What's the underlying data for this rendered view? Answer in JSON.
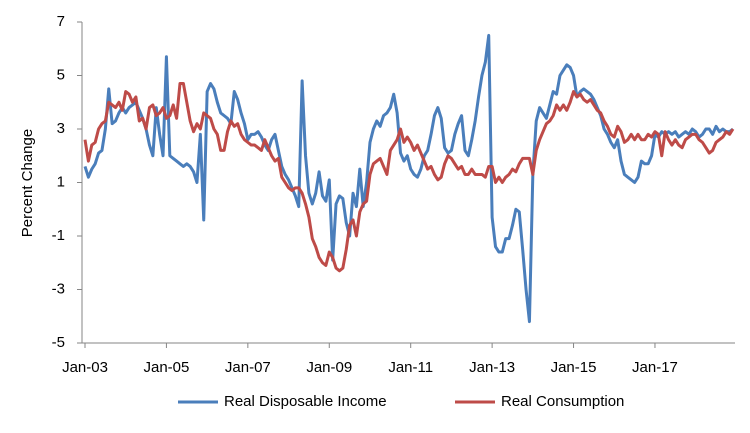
{
  "chart_data": {
    "type": "line",
    "y_label": "Percent Change",
    "categories": [
      "Jan-03",
      null,
      null,
      null,
      null,
      null,
      null,
      null,
      null,
      null,
      null,
      null,
      null,
      null,
      null,
      null,
      null,
      null,
      null,
      null,
      null,
      null,
      null,
      null,
      "Jan-05",
      null,
      null,
      null,
      null,
      null,
      null,
      null,
      null,
      null,
      null,
      null,
      null,
      null,
      null,
      null,
      null,
      null,
      null,
      null,
      null,
      null,
      null,
      null,
      "Jan-07",
      null,
      null,
      null,
      null,
      null,
      null,
      null,
      null,
      null,
      null,
      null,
      null,
      null,
      null,
      null,
      null,
      null,
      null,
      null,
      null,
      null,
      null,
      null,
      "Jan-09",
      null,
      null,
      null,
      null,
      null,
      null,
      null,
      null,
      null,
      null,
      null,
      null,
      null,
      null,
      null,
      null,
      null,
      null,
      null,
      null,
      null,
      null,
      null,
      "Jan-11",
      null,
      null,
      null,
      null,
      null,
      null,
      null,
      null,
      null,
      null,
      null,
      null,
      null,
      null,
      null,
      null,
      null,
      null,
      null,
      null,
      null,
      null,
      null,
      "Jan-13",
      null,
      null,
      null,
      null,
      null,
      null,
      null,
      null,
      null,
      null,
      null,
      null,
      null,
      null,
      null,
      null,
      null,
      null,
      null,
      null,
      null,
      null,
      null,
      "Jan-15",
      null,
      null,
      null,
      null,
      null,
      null,
      null,
      null,
      null,
      null,
      null,
      null,
      null,
      null,
      null,
      null,
      null,
      null,
      null,
      null,
      null,
      null,
      null,
      "Jan-17",
      null,
      null,
      null,
      null,
      null,
      null,
      null,
      null,
      null,
      null,
      null,
      null,
      null,
      null,
      null,
      null,
      null,
      null,
      null,
      null,
      null,
      null,
      null
    ],
    "series": [
      {
        "name": "Real Disposable Income",
        "color": "#4a7ebb",
        "values": [
          1.6,
          1.2,
          1.5,
          1.7,
          2.1,
          2.2,
          3.0,
          4.5,
          3.2,
          3.3,
          3.6,
          3.8,
          3.6,
          3.8,
          3.9,
          4.0,
          3.7,
          3.4,
          3.0,
          2.4,
          2.0,
          3.8,
          2.8,
          2.0,
          5.7,
          2.0,
          1.9,
          1.8,
          1.7,
          1.6,
          1.7,
          1.6,
          1.4,
          1.0,
          2.8,
          -0.4,
          4.4,
          4.7,
          4.5,
          4.0,
          3.6,
          3.5,
          3.4,
          3.2,
          4.4,
          4.1,
          3.6,
          3.2,
          2.6,
          2.8,
          2.8,
          2.9,
          2.7,
          2.4,
          2.2,
          2.6,
          2.8,
          2.2,
          1.6,
          1.3,
          1.1,
          0.8,
          0.5,
          0.1,
          4.8,
          2.0,
          0.6,
          0.2,
          0.6,
          1.4,
          0.5,
          0.3,
          1.1,
          -1.9,
          0.2,
          0.5,
          0.4,
          -0.5,
          -1.0,
          0.6,
          0.1,
          1.5,
          0.1,
          1.0,
          2.5,
          3.0,
          3.3,
          3.1,
          3.5,
          3.6,
          3.8,
          4.3,
          3.6,
          2.1,
          1.8,
          2.0,
          1.5,
          1.3,
          1.2,
          1.5,
          2.0,
          2.2,
          2.8,
          3.5,
          3.8,
          3.4,
          2.3,
          2.1,
          2.2,
          2.8,
          3.2,
          3.5,
          2.2,
          2.0,
          2.6,
          3.3,
          4.2,
          5.0,
          5.5,
          6.5,
          -0.3,
          -1.4,
          -1.6,
          -1.6,
          -1.1,
          -1.1,
          -0.6,
          0.0,
          -0.1,
          -1.5,
          -3.0,
          -4.2,
          1.3,
          3.3,
          3.8,
          3.6,
          3.4,
          3.9,
          4.4,
          4.3,
          5.0,
          5.2,
          5.4,
          5.3,
          5.0,
          4.2,
          4.4,
          4.5,
          4.4,
          4.3,
          4.1,
          3.8,
          3.5,
          3.0,
          2.8,
          2.5,
          2.3,
          2.6,
          1.8,
          1.3,
          1.2,
          1.1,
          1.0,
          1.2,
          1.8,
          1.7,
          1.7,
          2.0,
          2.8,
          2.7,
          2.9,
          2.8,
          2.9,
          2.8,
          2.9,
          2.7,
          2.8,
          2.9,
          2.8,
          3.0,
          2.9,
          2.7,
          2.8,
          3.0,
          3.0,
          2.8,
          3.1,
          2.9,
          3.0,
          2.9,
          2.9,
          3.0
        ]
      },
      {
        "name": "Real Consumption",
        "color": "#be4b48",
        "values": [
          2.6,
          1.8,
          2.4,
          2.5,
          3.0,
          3.2,
          3.3,
          4.0,
          3.9,
          3.8,
          4.0,
          3.7,
          4.4,
          4.3,
          4.0,
          4.2,
          3.3,
          3.4,
          3.0,
          3.8,
          3.9,
          3.5,
          3.6,
          3.8,
          3.4,
          3.5,
          3.9,
          3.4,
          4.7,
          4.7,
          4.0,
          3.3,
          2.9,
          3.2,
          3.0,
          3.6,
          3.5,
          3.4,
          3.0,
          2.8,
          2.2,
          2.2,
          2.9,
          3.3,
          3.1,
          3.2,
          2.8,
          2.6,
          2.5,
          2.4,
          2.4,
          2.3,
          2.2,
          2.6,
          2.3,
          2.0,
          1.8,
          1.9,
          1.2,
          1.0,
          0.8,
          0.7,
          0.8,
          0.8,
          0.6,
          0.2,
          -0.3,
          -1.1,
          -1.4,
          -1.8,
          -2.0,
          -2.1,
          -1.6,
          -1.8,
          -2.2,
          -2.3,
          -2.2,
          -1.5,
          -0.6,
          -0.4,
          -1.0,
          -0.1,
          0.2,
          0.3,
          1.3,
          1.7,
          1.8,
          1.9,
          1.6,
          1.3,
          2.2,
          2.4,
          2.6,
          3.0,
          2.5,
          2.7,
          2.5,
          2.2,
          2.4,
          2.1,
          1.8,
          1.5,
          1.6,
          1.3,
          1.1,
          1.2,
          1.7,
          2.0,
          1.9,
          1.7,
          1.5,
          1.6,
          1.3,
          1.3,
          1.5,
          1.3,
          1.3,
          1.3,
          1.2,
          1.6,
          1.6,
          1.0,
          1.2,
          1.0,
          1.2,
          1.3,
          1.5,
          1.4,
          1.7,
          1.9,
          1.9,
          1.9,
          1.3,
          2.2,
          2.6,
          2.9,
          3.2,
          3.3,
          3.5,
          3.9,
          3.7,
          3.9,
          3.7,
          4.0,
          4.4,
          4.2,
          4.3,
          4.1,
          4.0,
          4.1,
          3.9,
          3.7,
          3.6,
          3.3,
          3.1,
          2.8,
          2.7,
          3.1,
          2.9,
          2.5,
          2.6,
          2.8,
          2.6,
          2.8,
          2.6,
          2.6,
          2.8,
          2.7,
          2.9,
          2.8,
          2.0,
          2.9,
          2.6,
          2.4,
          2.6,
          2.4,
          2.3,
          2.6,
          2.7,
          2.8,
          2.8,
          2.6,
          2.5,
          2.3,
          2.1,
          2.2,
          2.5,
          2.6,
          2.7,
          2.9,
          2.8,
          3.0
        ]
      }
    ],
    "ylim": [
      -5,
      7
    ],
    "yticks": [
      -5,
      -3,
      -1,
      1,
      3,
      5,
      7
    ],
    "grid": false,
    "legend": "bottom"
  }
}
